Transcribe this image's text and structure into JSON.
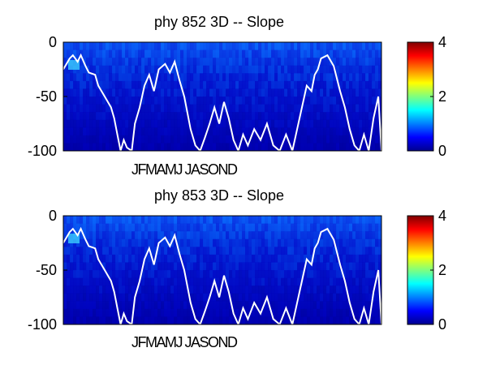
{
  "figure": {
    "xaxis_months_label": "JFMAMJ JASOND"
  },
  "colormap": "jet",
  "chart_data": [
    {
      "type": "heatmap",
      "title": "phy  852 3D   -- Slope",
      "xlabel": "",
      "ylabel": "",
      "ylim": [
        -100,
        0
      ],
      "yticks": [
        0,
        -50,
        -100
      ],
      "clim": [
        0,
        4
      ],
      "colorbar_ticks": [
        4,
        2,
        0
      ],
      "grid": false,
      "line": {
        "name": "",
        "color": "#ffffff",
        "x": [
          0,
          0.02,
          0.03,
          0.045,
          0.055,
          0.07,
          0.08,
          0.1,
          0.11,
          0.13,
          0.15,
          0.16,
          0.17,
          0.18,
          0.19,
          0.2,
          0.215,
          0.225,
          0.24,
          0.255,
          0.27,
          0.285,
          0.3,
          0.32,
          0.335,
          0.35,
          0.365,
          0.38,
          0.4,
          0.415,
          0.43,
          0.445,
          0.46,
          0.475,
          0.49,
          0.505,
          0.52,
          0.535,
          0.55,
          0.565,
          0.58,
          0.6,
          0.62,
          0.64,
          0.66,
          0.68,
          0.7,
          0.72,
          0.735,
          0.75,
          0.765,
          0.78,
          0.79,
          0.8,
          0.81,
          0.83,
          0.85,
          0.87,
          0.885,
          0.9,
          0.915,
          0.93,
          0.945,
          0.96,
          0.975,
          0.99,
          1.0
        ],
        "y": [
          -25,
          -15,
          -12,
          -18,
          -12,
          -22,
          -28,
          -30,
          -40,
          -50,
          -60,
          -70,
          -85,
          -100,
          -90,
          -97,
          -100,
          -75,
          -60,
          -40,
          -30,
          -45,
          -25,
          -20,
          -28,
          -18,
          -35,
          -50,
          -80,
          -95,
          -100,
          -88,
          -75,
          -60,
          -75,
          -55,
          -70,
          -90,
          -100,
          -85,
          -95,
          -80,
          -90,
          -75,
          -95,
          -100,
          -85,
          -100,
          -80,
          -60,
          -40,
          -45,
          -30,
          -25,
          -15,
          -12,
          -22,
          -45,
          -60,
          -80,
          -95,
          -100,
          -85,
          -100,
          -70,
          -50,
          -100
        ]
      }
    },
    {
      "type": "heatmap",
      "title": "phy  853 3D   -- Slope",
      "xlabel": "",
      "ylabel": "",
      "ylim": [
        -100,
        0
      ],
      "yticks": [
        0,
        -50,
        -100
      ],
      "clim": [
        0,
        4
      ],
      "colorbar_ticks": [
        4,
        2,
        0
      ],
      "grid": false,
      "line": {
        "name": "",
        "color": "#ffffff",
        "x": [
          0,
          0.02,
          0.03,
          0.045,
          0.055,
          0.07,
          0.08,
          0.1,
          0.11,
          0.13,
          0.15,
          0.16,
          0.17,
          0.18,
          0.19,
          0.2,
          0.215,
          0.225,
          0.24,
          0.255,
          0.27,
          0.285,
          0.3,
          0.32,
          0.335,
          0.35,
          0.365,
          0.38,
          0.4,
          0.415,
          0.43,
          0.445,
          0.46,
          0.475,
          0.49,
          0.505,
          0.52,
          0.535,
          0.55,
          0.565,
          0.58,
          0.6,
          0.62,
          0.64,
          0.66,
          0.68,
          0.7,
          0.72,
          0.735,
          0.75,
          0.765,
          0.78,
          0.79,
          0.8,
          0.81,
          0.83,
          0.85,
          0.87,
          0.885,
          0.9,
          0.915,
          0.93,
          0.945,
          0.96,
          0.975,
          0.99,
          1.0
        ],
        "y": [
          -25,
          -15,
          -12,
          -18,
          -12,
          -22,
          -28,
          -30,
          -40,
          -50,
          -60,
          -70,
          -85,
          -100,
          -90,
          -97,
          -100,
          -75,
          -60,
          -40,
          -30,
          -45,
          -25,
          -20,
          -28,
          -18,
          -35,
          -50,
          -80,
          -95,
          -100,
          -88,
          -75,
          -60,
          -75,
          -55,
          -70,
          -90,
          -100,
          -85,
          -95,
          -80,
          -90,
          -75,
          -95,
          -100,
          -85,
          -100,
          -80,
          -60,
          -40,
          -45,
          -30,
          -25,
          -15,
          -12,
          -22,
          -45,
          -60,
          -80,
          -95,
          -100,
          -85,
          -100,
          -70,
          -50,
          -100
        ]
      }
    }
  ]
}
